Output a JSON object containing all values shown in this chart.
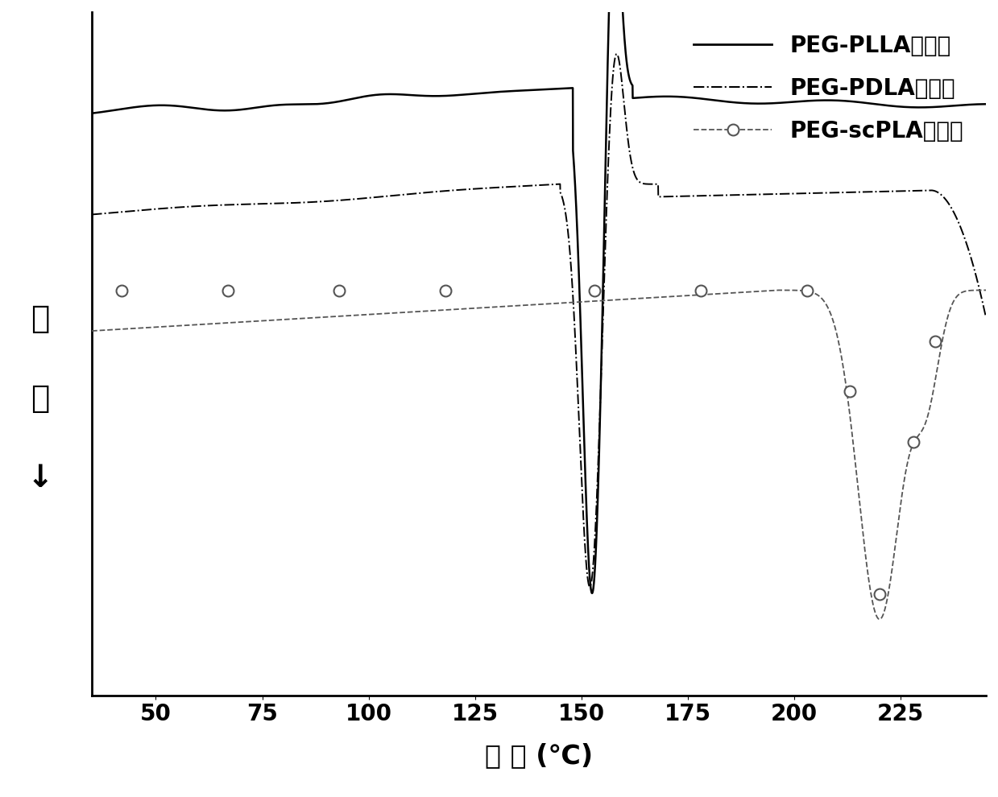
{
  "xlabel": "温 度 (℃)",
  "xlim": [
    35,
    245
  ],
  "ylim": [
    -9.0,
    4.5
  ],
  "xticks": [
    50,
    75,
    100,
    125,
    150,
    175,
    200,
    225
  ],
  "legend_labels": [
    "PEG-PLLA纳米囊",
    "PEG-PDLA纳米囊",
    "PEG-scPLA纳米囊"
  ],
  "background_color": "#ffffff",
  "font_size_label": 24,
  "font_size_tick": 20,
  "font_size_legend": 20
}
